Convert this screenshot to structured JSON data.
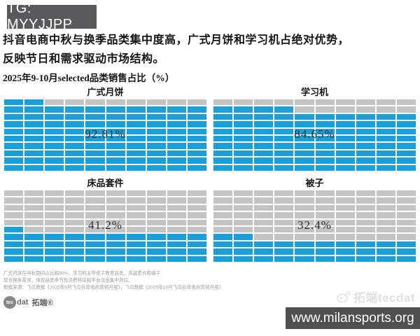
{
  "header": {
    "tg_badge": "TG: MYYJJPP"
  },
  "headline": {
    "line1": "抖音电商中秋与换季品类集中度高，广式月饼和学习机占绝对优势，",
    "line2": "反映节日和需求驱动市场结构。"
  },
  "chart_data": {
    "type": "waffle",
    "title": "2025年9-10月selected品类销售占比（%）",
    "unit": "%",
    "layout": "2x2",
    "grid": {
      "rows": 10,
      "cols": 10,
      "cell_value_pct": 1
    },
    "fill_order": "bottom-up-left-to-right",
    "series": [
      {
        "name": "广式月饼",
        "value": 92.81,
        "label": "92.81%"
      },
      {
        "name": "学习机",
        "value": 84.65,
        "label": "84.65%"
      },
      {
        "name": "床品套件",
        "value": 41.2,
        "label": "41.2%"
      },
      {
        "name": "被子",
        "value": 32.4,
        "label": "32.4%"
      }
    ],
    "filled_color": "#1B9FD9",
    "empty_color": "#C4C4C5",
    "legend": "none"
  },
  "footnotes": [
    "广式月饼在中秋期间占比超90%，学习机主导电子教育品类，床品套件和被子",
    "契合换季需求，体现品类季节性消费特征和平台流量集中效应。",
    "数据来源：飞瓜数据《2025年9月飞瓜抖音电商营销月报》，飞瓜数据《2025年10月飞瓜抖音电商营销月报》"
  ],
  "logo": {
    "circle_text": "tec",
    "suffix": "dat",
    "cn": "拓端®"
  },
  "watermark": {
    "text": "拓端tecdat"
  },
  "footer": {
    "url": "www.milansports.org"
  },
  "colors": {
    "badge_bg": "#59595B",
    "footer_bg": "#4F4F50",
    "filled": "#1B9FD9",
    "empty": "#C4C4C5"
  }
}
